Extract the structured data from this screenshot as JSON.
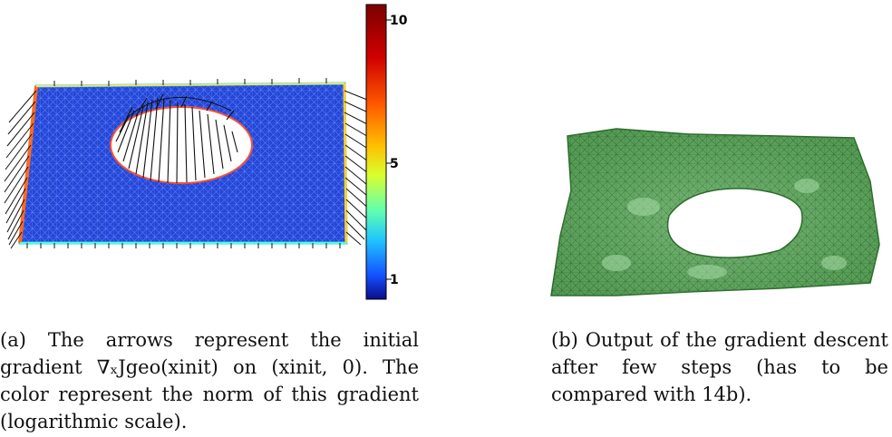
{
  "figure_a": {
    "colorbar": {
      "ticks": [
        "10",
        "5",
        "1"
      ],
      "colors": [
        "#0b0b8a",
        "#1450ff",
        "#20c4ff",
        "#60ffb0",
        "#d8ff30",
        "#ffc000",
        "#ff5a00",
        "#d00000",
        "#7a0000"
      ]
    },
    "caption": "(a) The arrows represent the initial gradient ∇ₓJgeo(xinit) on (xinit, 0). The color represent the norm of this gradient (logarithmic scale)."
  },
  "figure_b": {
    "caption": "(b) Output of the gradient descent after few steps (has to be compared with 14b)."
  },
  "colors": {
    "mesh_blue": "#1f3fd6",
    "mesh_green": "#5aa35a",
    "mesh_dark_green": "#2d6b2d"
  }
}
